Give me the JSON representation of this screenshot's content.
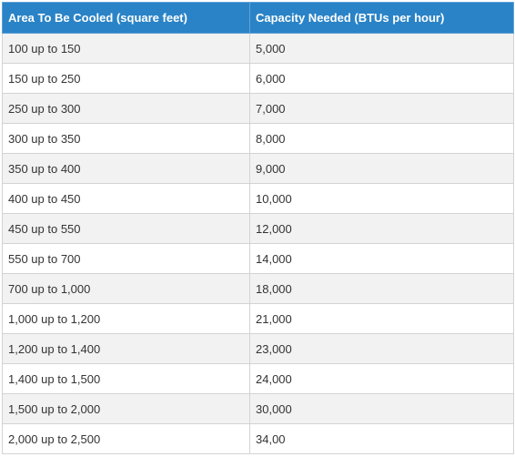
{
  "table": {
    "headers": [
      "Area To Be Cooled (square feet)",
      "Capacity Needed (BTUs per hour)"
    ],
    "rows": [
      [
        "100 up to 150",
        "5,000"
      ],
      [
        "150 up to 250",
        "6,000"
      ],
      [
        "250 up to 300",
        "7,000"
      ],
      [
        "300 up to 350",
        "8,000"
      ],
      [
        "350 up to 400",
        "9,000"
      ],
      [
        "400 up to 450",
        "10,000"
      ],
      [
        "450 up to 550",
        "12,000"
      ],
      [
        "550 up to 700",
        "14,000"
      ],
      [
        "700 up to 1,000",
        "18,000"
      ],
      [
        "1,000 up to 1,200",
        "21,000"
      ],
      [
        "1,200 up to 1,400",
        "23,000"
      ],
      [
        "1,400 up to 1,500",
        "24,000"
      ],
      [
        "1,500 up to 2,000",
        "30,000"
      ],
      [
        "2,000 up to 2,500",
        "34,00"
      ]
    ]
  },
  "colors": {
    "header_bg": "#2a83c6",
    "header_text": "#ffffff",
    "row_alt_bg": "#f2f2f2",
    "border": "#d3d3d3"
  }
}
